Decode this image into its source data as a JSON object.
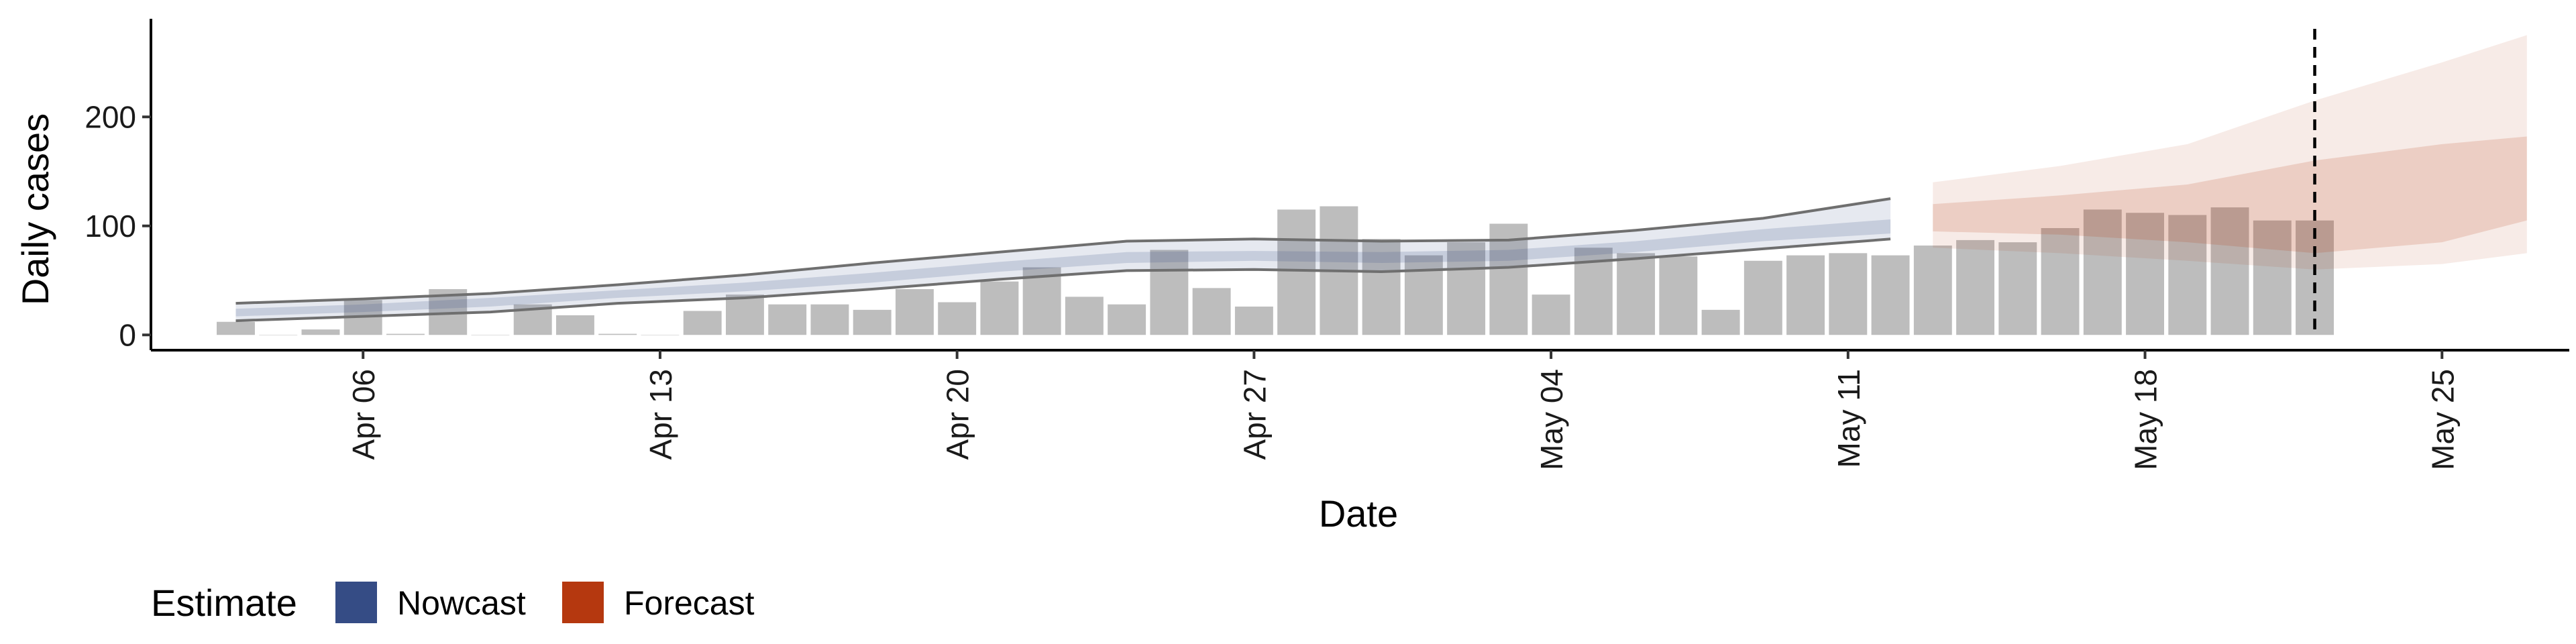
{
  "chart_data": {
    "type": "bar",
    "xlabel": "Date",
    "ylabel": "Daily cases",
    "x_ticks": [
      "Apr 06",
      "Apr 13",
      "Apr 20",
      "Apr 27",
      "May 04",
      "May 11",
      "May 18",
      "May 25"
    ],
    "y_ticks": [
      0,
      100,
      200
    ],
    "ylim": [
      -14,
      290
    ],
    "xlim": [
      "2020-04-01",
      "2020-05-28"
    ],
    "legend": {
      "title": "Estimate",
      "placement": "bottom-left",
      "entries": [
        {
          "label": "Nowcast",
          "color": "#354c85"
        },
        {
          "label": "Forecast",
          "color": "#b5380f"
        }
      ]
    },
    "vline_date": "2020-05-22",
    "bar_color": "#bdbdbd",
    "series": [
      {
        "name": "Daily cases",
        "kind": "bar",
        "x": [
          "2020-04-03",
          "2020-04-04",
          "2020-04-05",
          "2020-04-06",
          "2020-04-07",
          "2020-04-08",
          "2020-04-09",
          "2020-04-10",
          "2020-04-11",
          "2020-04-12",
          "2020-04-13",
          "2020-04-14",
          "2020-04-15",
          "2020-04-16",
          "2020-04-17",
          "2020-04-18",
          "2020-04-19",
          "2020-04-20",
          "2020-04-21",
          "2020-04-22",
          "2020-04-23",
          "2020-04-24",
          "2020-04-25",
          "2020-04-26",
          "2020-04-27",
          "2020-04-28",
          "2020-04-29",
          "2020-04-30",
          "2020-05-01",
          "2020-05-02",
          "2020-05-03",
          "2020-05-04",
          "2020-05-05",
          "2020-05-06",
          "2020-05-07",
          "2020-05-08",
          "2020-05-09",
          "2020-05-10",
          "2020-05-11",
          "2020-05-12",
          "2020-05-13",
          "2020-05-14",
          "2020-05-15",
          "2020-05-16",
          "2020-05-17",
          "2020-05-18",
          "2020-05-19",
          "2020-05-20",
          "2020-05-21",
          "2020-05-22"
        ],
        "values": [
          12,
          0,
          5,
          32,
          1,
          42,
          0,
          28,
          18,
          1,
          0,
          22,
          37,
          28,
          28,
          23,
          42,
          30,
          49,
          62,
          35,
          28,
          78,
          43,
          26,
          115,
          118,
          88,
          73,
          85,
          102,
          37,
          80,
          75,
          72,
          23,
          68,
          73,
          75,
          73,
          82,
          87,
          85,
          98,
          115,
          112,
          110,
          117,
          105,
          105
        ]
      },
      {
        "name": "Nowcast",
        "kind": "band",
        "color": "#354c85",
        "x": [
          "2020-04-03",
          "2020-04-06",
          "2020-04-09",
          "2020-04-12",
          "2020-04-15",
          "2020-04-18",
          "2020-04-21",
          "2020-04-24",
          "2020-04-27",
          "2020-04-30",
          "2020-05-03",
          "2020-05-06",
          "2020-05-09",
          "2020-05-12"
        ],
        "median": [
          20,
          24,
          29,
          37,
          43,
          52,
          62,
          70,
          72,
          70,
          72,
          80,
          90,
          100
        ],
        "inner_lower": [
          17,
          21,
          26,
          34,
          40,
          48,
          58,
          66,
          68,
          66,
          68,
          76,
          86,
          93
        ],
        "inner_upper": [
          24,
          28,
          34,
          41,
          48,
          57,
          67,
          76,
          77,
          76,
          78,
          86,
          97,
          106
        ],
        "outer_lower": [
          13,
          17,
          21,
          29,
          34,
          42,
          51,
          59,
          60,
          58,
          62,
          70,
          79,
          88
        ],
        "outer_upper": [
          29,
          33,
          38,
          46,
          55,
          66,
          76,
          86,
          88,
          86,
          87,
          96,
          107,
          125
        ]
      },
      {
        "name": "Forecast",
        "kind": "band",
        "color": "#b5380f",
        "x": [
          "2020-05-13",
          "2020-05-16",
          "2020-05-19",
          "2020-05-22",
          "2020-05-25",
          "2020-05-27"
        ],
        "inner_lower": [
          95,
          92,
          85,
          75,
          85,
          105
        ],
        "inner_upper": [
          120,
          128,
          138,
          160,
          175,
          182
        ],
        "outer_lower": [
          80,
          75,
          68,
          60,
          65,
          75
        ],
        "outer_upper": [
          140,
          155,
          175,
          215,
          250,
          275
        ]
      }
    ]
  }
}
